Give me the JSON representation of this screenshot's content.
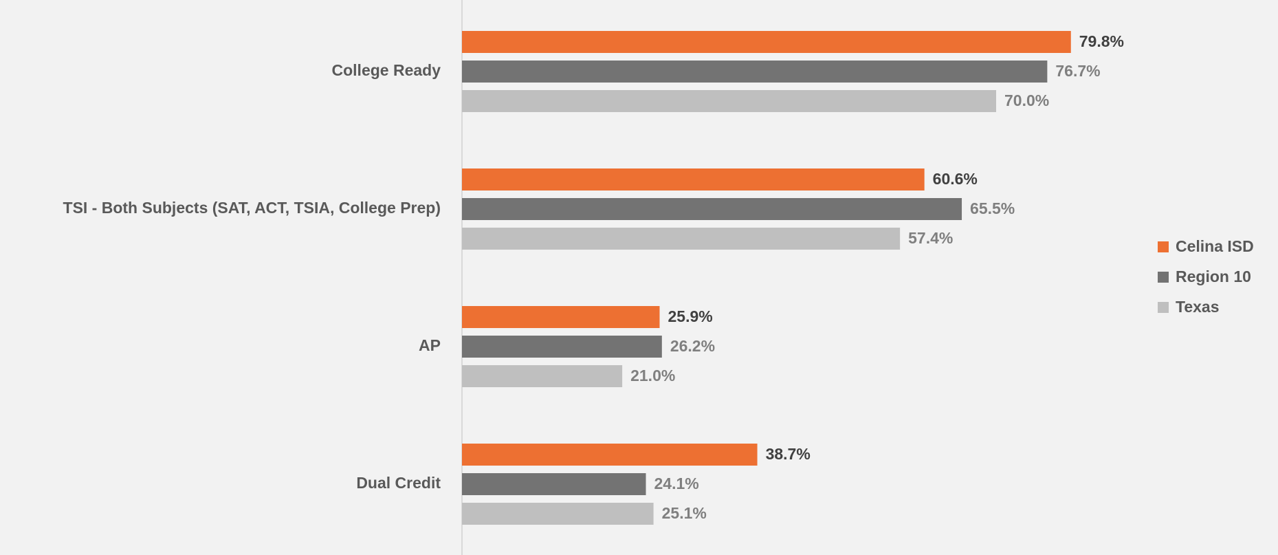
{
  "chart_data": {
    "type": "bar",
    "orientation": "horizontal",
    "categories": [
      "College Ready",
      "TSI - Both Subjects (SAT, ACT, TSIA, College Prep)",
      "AP",
      "Dual Credit"
    ],
    "series": [
      {
        "name": "Celina ISD",
        "color": "#ed7032",
        "values": [
          79.8,
          60.6,
          25.9,
          38.7
        ],
        "value_labels": [
          "79.8%",
          "60.6%",
          "25.9%",
          "38.7%"
        ]
      },
      {
        "name": "Region 10",
        "color": "#737373",
        "values": [
          76.7,
          65.5,
          26.2,
          24.1
        ],
        "value_labels": [
          "76.7%",
          "65.5%",
          "26.2%",
          "24.1%"
        ]
      },
      {
        "name": "Texas",
        "color": "#bfbfbf",
        "values": [
          70.0,
          57.4,
          21.0,
          25.1
        ],
        "value_labels": [
          "70.0%",
          "57.4%",
          "21.0%",
          "25.1%"
        ]
      }
    ],
    "legend": "right",
    "grid": false
  }
}
